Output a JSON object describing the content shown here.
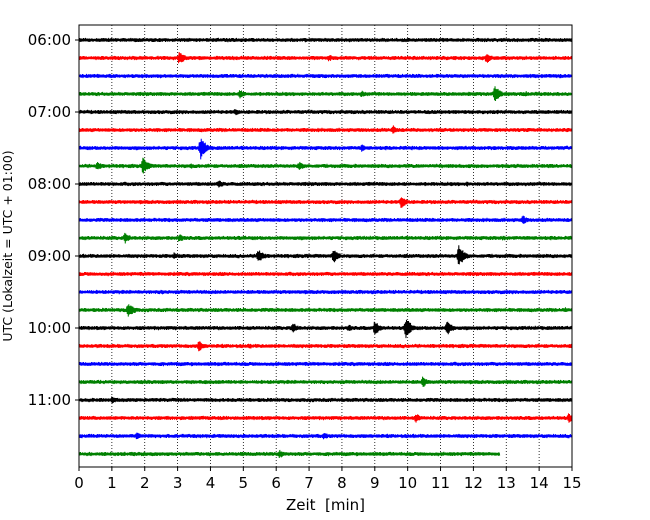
{
  "chart_data": {
    "type": "line",
    "title": "",
    "xlabel": "Zeit  [min]",
    "ylabel": "UTC (Lokalzeit = UTC + 01:00)",
    "xlim": [
      0,
      15
    ],
    "x_ticks": [
      "0",
      "1",
      "2",
      "3",
      "4",
      "5",
      "6",
      "7",
      "8",
      "9",
      "10",
      "11",
      "12",
      "13",
      "14",
      "15"
    ],
    "y_ticks": [
      "06:00",
      "07:00",
      "08:00",
      "09:00",
      "10:00",
      "11:00"
    ],
    "grid": "vertical dotted",
    "colors": [
      "#000000",
      "#ff0000",
      "#0000ff",
      "#008000"
    ],
    "trace_minutes": 15,
    "last_trace_end_minute": 12.8,
    "series": [
      {
        "start": "06:00",
        "color": "#000000",
        "events": []
      },
      {
        "start": "06:15",
        "color": "#ff0000",
        "events": [
          {
            "t": 3.05,
            "a": 7
          },
          {
            "t": 7.6,
            "a": 4
          },
          {
            "t": 12.4,
            "a": 6
          }
        ]
      },
      {
        "start": "06:30",
        "color": "#0000ff",
        "events": []
      },
      {
        "start": "06:45",
        "color": "#008000",
        "events": [
          {
            "t": 4.9,
            "a": 5
          },
          {
            "t": 8.6,
            "a": 4
          },
          {
            "t": 12.65,
            "a": 9
          },
          {
            "t": 13.6,
            "a": 3
          }
        ]
      },
      {
        "start": "07:00",
        "color": "#000000",
        "events": [
          {
            "t": 4.75,
            "a": 4
          }
        ]
      },
      {
        "start": "07:15",
        "color": "#ff0000",
        "events": [
          {
            "t": 9.55,
            "a": 5
          }
        ]
      },
      {
        "start": "07:30",
        "color": "#0000ff",
        "events": [
          {
            "t": 3.7,
            "a": 12
          },
          {
            "t": 8.6,
            "a": 4
          }
        ]
      },
      {
        "start": "07:45",
        "color": "#008000",
        "events": [
          {
            "t": 0.55,
            "a": 5
          },
          {
            "t": 1.95,
            "a": 9
          },
          {
            "t": 6.7,
            "a": 5
          },
          {
            "t": 3.4,
            "a": 3
          }
        ]
      },
      {
        "start": "08:00",
        "color": "#000000",
        "events": [
          {
            "t": 4.25,
            "a": 5
          },
          {
            "t": 11.8,
            "a": 3
          }
        ]
      },
      {
        "start": "08:15",
        "color": "#ff0000",
        "events": [
          {
            "t": 9.8,
            "a": 7
          }
        ]
      },
      {
        "start": "08:30",
        "color": "#0000ff",
        "events": [
          {
            "t": 13.5,
            "a": 5
          }
        ]
      },
      {
        "start": "08:45",
        "color": "#008000",
        "events": [
          {
            "t": 1.4,
            "a": 6
          },
          {
            "t": 3.05,
            "a": 5
          },
          {
            "t": 12.9,
            "a": 3
          }
        ]
      },
      {
        "start": "09:00",
        "color": "#000000",
        "events": [
          {
            "t": 5.45,
            "a": 8
          },
          {
            "t": 7.75,
            "a": 8
          },
          {
            "t": 11.55,
            "a": 12
          },
          {
            "t": 2.9,
            "a": 4
          }
        ]
      },
      {
        "start": "09:15",
        "color": "#ff0000",
        "events": []
      },
      {
        "start": "09:30",
        "color": "#0000ff",
        "events": [
          {
            "t": 2.5,
            "a": 3
          }
        ]
      },
      {
        "start": "09:45",
        "color": "#008000",
        "events": [
          {
            "t": 1.5,
            "a": 9
          },
          {
            "t": 14.8,
            "a": 3
          }
        ]
      },
      {
        "start": "10:00",
        "color": "#000000",
        "events": [
          {
            "t": 6.5,
            "a": 6
          },
          {
            "t": 9.0,
            "a": 8
          },
          {
            "t": 9.95,
            "a": 11
          },
          {
            "t": 11.2,
            "a": 8
          },
          {
            "t": 8.2,
            "a": 4
          }
        ]
      },
      {
        "start": "10:15",
        "color": "#ff0000",
        "events": [
          {
            "t": 3.65,
            "a": 6
          },
          {
            "t": 5.2,
            "a": 3
          }
        ]
      },
      {
        "start": "10:30",
        "color": "#0000ff",
        "events": []
      },
      {
        "start": "10:45",
        "color": "#008000",
        "events": [
          {
            "t": 10.45,
            "a": 6
          }
        ]
      },
      {
        "start": "11:00",
        "color": "#000000",
        "events": [
          {
            "t": 1.0,
            "a": 4
          }
        ]
      },
      {
        "start": "11:15",
        "color": "#ff0000",
        "events": [
          {
            "t": 10.25,
            "a": 5
          },
          {
            "t": 14.9,
            "a": 5
          }
        ]
      },
      {
        "start": "11:30",
        "color": "#0000ff",
        "events": [
          {
            "t": 1.75,
            "a": 4
          },
          {
            "t": 7.45,
            "a": 4
          }
        ]
      },
      {
        "start": "11:45",
        "color": "#008000",
        "events": [
          {
            "t": 6.1,
            "a": 5
          }
        ]
      }
    ]
  }
}
